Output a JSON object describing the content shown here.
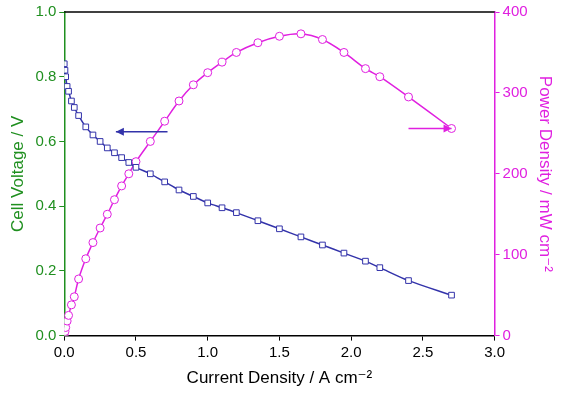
{
  "chart_data": {
    "type": "scatter",
    "x_label": "Current Density / A cm⁻²",
    "y_label": "Cell Voltage / V",
    "y2_label": "Power Density / mW cm⁻²",
    "x": [
      0,
      0.005,
      0.01,
      0.02,
      0.03,
      0.05,
      0.07,
      0.1,
      0.15,
      0.2,
      0.25,
      0.3,
      0.35,
      0.4,
      0.45,
      0.5,
      0.6,
      0.7,
      0.8,
      0.9,
      1.0,
      1.1,
      1.2,
      1.35,
      1.5,
      1.65,
      1.8,
      1.95,
      2.1,
      2.2,
      2.4,
      2.7
    ],
    "series": [
      {
        "name": "Cell Voltage",
        "color": "#3333aa",
        "marker": "square",
        "line_style": "solid",
        "axis": "y",
        "values": [
          0.84,
          0.82,
          0.8,
          0.77,
          0.755,
          0.725,
          0.705,
          0.68,
          0.645,
          0.62,
          0.6,
          0.58,
          0.565,
          0.55,
          0.535,
          0.52,
          0.5,
          0.475,
          0.45,
          0.43,
          0.41,
          0.395,
          0.38,
          0.355,
          0.33,
          0.305,
          0.28,
          0.255,
          0.23,
          0.21,
          0.17,
          0.125
        ]
      },
      {
        "name": "Power Density",
        "color": "#e020e0",
        "marker": "circle",
        "line_style": "solid",
        "axis": "y2",
        "values": [
          0,
          5,
          10,
          18,
          25,
          38,
          48,
          70,
          95,
          115,
          133,
          150,
          168,
          185,
          200,
          215,
          240,
          265,
          290,
          310,
          325,
          338,
          350,
          362,
          370,
          373,
          366,
          350,
          330,
          320,
          295,
          256
        ]
      }
    ],
    "xlim": [
      0,
      3.0
    ],
    "xticks": [
      {
        "value": 0,
        "label": "0.0"
      },
      {
        "value": 0.5,
        "label": "0.5"
      },
      {
        "value": 1.0,
        "label": "1.0"
      },
      {
        "value": 1.5,
        "label": "1.5"
      },
      {
        "value": 2.0,
        "label": "2.0"
      },
      {
        "value": 2.5,
        "label": "2.5"
      },
      {
        "value": 3.0,
        "label": "3.0"
      }
    ],
    "ylim": [
      0,
      1.0
    ],
    "yticks": [
      {
        "value": 0,
        "label": "0.0"
      },
      {
        "value": 0.2,
        "label": "0.2"
      },
      {
        "value": 0.4,
        "label": "0.4"
      },
      {
        "value": 0.6,
        "label": "0.6"
      },
      {
        "value": 0.8,
        "label": "0.8"
      },
      {
        "value": 1.0,
        "label": "1.0"
      }
    ],
    "y2lim": [
      0,
      400
    ],
    "y2ticks": [
      0,
      100,
      200,
      300,
      400
    ],
    "grid": false
  }
}
